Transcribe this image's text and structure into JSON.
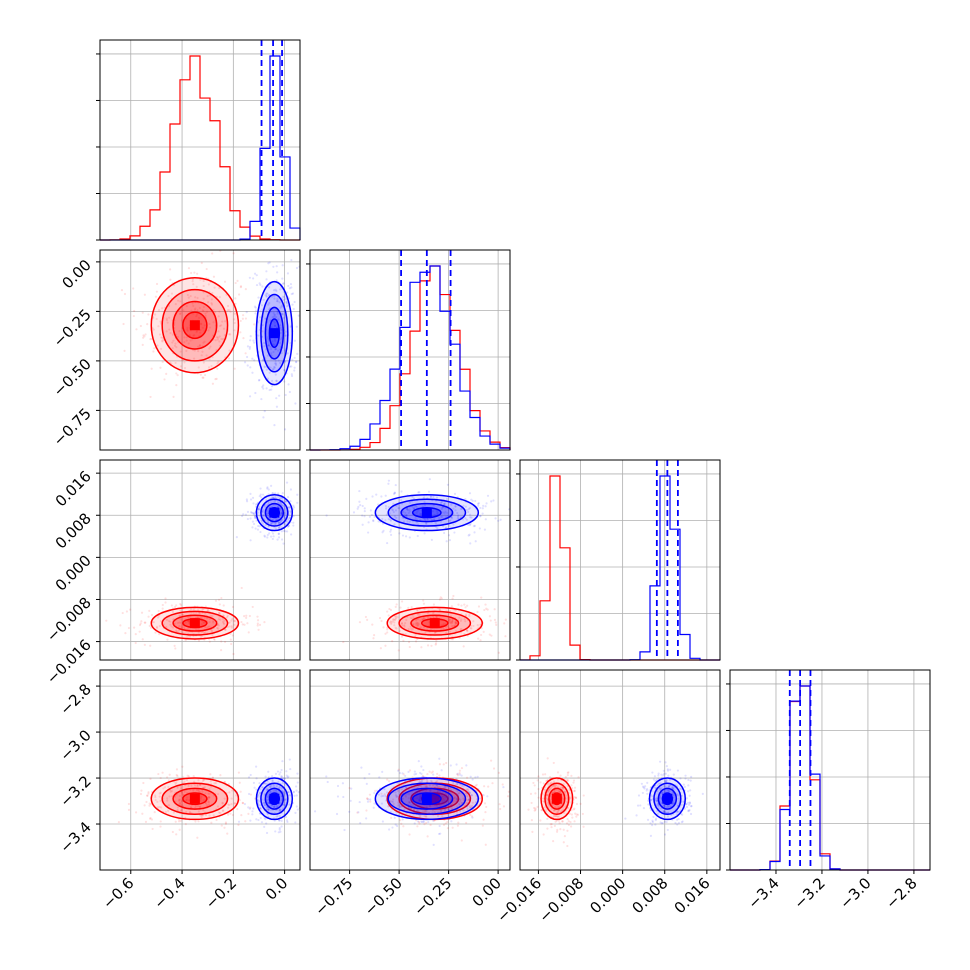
{
  "chart_data": {
    "type": "corner",
    "grid": true,
    "series": [
      {
        "color": "#ff0000",
        "name": ""
      },
      {
        "color": "#0000ff",
        "name": ""
      }
    ],
    "parameters": [
      {
        "ticks": [
          "−0.6",
          "−0.4",
          "−0.2",
          "0.0"
        ],
        "tick_values": [
          -0.6,
          -0.4,
          -0.2,
          0.0
        ],
        "range": [
          -0.72,
          0.06
        ],
        "red": {
          "mean": -0.35,
          "sd": 0.085
        },
        "blue": {
          "mean": -0.04,
          "sd": 0.035
        },
        "quantiles": [
          -0.09,
          -0.045,
          -0.01
        ]
      },
      {
        "ticks": [
          "0.00",
          "−0.25",
          "−0.50",
          "−0.75",
          "−0.75",
          "−0.50",
          "−0.25",
          "0.00"
        ],
        "tick_values": [
          0.0,
          -0.25,
          -0.5,
          -0.75
        ],
        "range": [
          -0.95,
          0.06
        ],
        "red": {
          "mean": -0.32,
          "sd": 0.12
        },
        "blue": {
          "mean": -0.36,
          "sd": 0.13
        },
        "quantiles": [
          -0.49,
          -0.36,
          -0.24
        ]
      },
      {
        "ticks": [
          "0.016",
          "0.008",
          "0.000",
          "−0.008",
          "−0.016",
          "−0.016",
          "−0.008",
          "0.000",
          "0.008",
          "0.016"
        ],
        "tick_values": [
          0.016,
          0.008,
          0.0,
          -0.008,
          -0.016
        ],
        "range": [
          -0.0195,
          0.0185
        ],
        "red": {
          "mean": -0.0125,
          "sd": 0.0015
        },
        "blue": {
          "mean": 0.0085,
          "sd": 0.0017
        },
        "quantiles": [
          0.0065,
          0.0085,
          0.0105
        ]
      },
      {
        "ticks": [
          "−2.8",
          "−3.0",
          "−3.2",
          "−3.4",
          "−3.4",
          "−3.2",
          "−3.0",
          "−2.8"
        ],
        "tick_values": [
          -2.8,
          -3.0,
          -3.2,
          -3.4
        ],
        "range": [
          -3.6,
          -2.73
        ],
        "red": {
          "mean": -3.29,
          "sd": 0.045
        },
        "blue": {
          "mean": -3.29,
          "sd": 0.045
        },
        "quantiles": [
          -3.34,
          -3.295,
          -3.25
        ]
      }
    ]
  }
}
